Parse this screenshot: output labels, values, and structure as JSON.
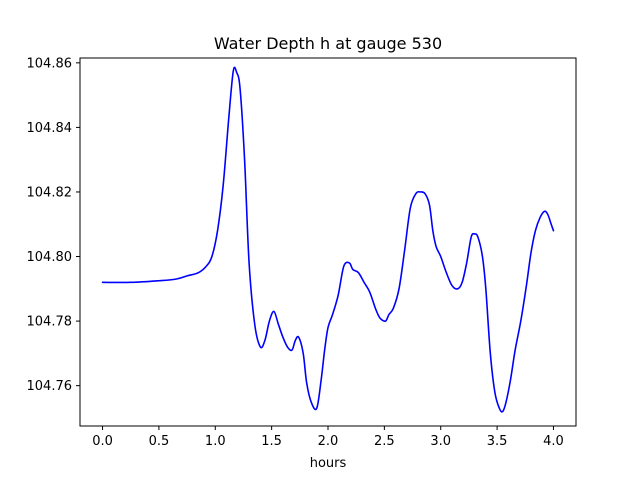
{
  "chart_data": {
    "type": "line",
    "title": "Water Depth h at gauge 530",
    "xlabel": "hours",
    "ylabel": "",
    "xlim": [
      -0.2,
      4.2
    ],
    "ylim": [
      104.7475,
      104.8615
    ],
    "x_ticks": [
      0.0,
      0.5,
      1.0,
      1.5,
      2.0,
      2.5,
      3.0,
      3.5,
      4.0
    ],
    "x_tick_labels": [
      "0.0",
      "0.5",
      "1.0",
      "1.5",
      "2.0",
      "2.5",
      "3.0",
      "3.5",
      "4.0"
    ],
    "y_ticks": [
      104.76,
      104.78,
      104.8,
      104.82,
      104.84,
      104.86
    ],
    "y_tick_labels": [
      "104.76",
      "104.78",
      "104.80",
      "104.82",
      "104.84",
      "104.86"
    ],
    "grid": false,
    "legend": "none",
    "line_color": "#0000ff",
    "series": [
      {
        "x": [
          0.0,
          0.25,
          0.5,
          0.65,
          0.75,
          0.85,
          0.92,
          0.97,
          1.02,
          1.07,
          1.12,
          1.16,
          1.19,
          1.22,
          1.26,
          1.3,
          1.35,
          1.4,
          1.44,
          1.48,
          1.52,
          1.56,
          1.6,
          1.64,
          1.68,
          1.71,
          1.74,
          1.78,
          1.81,
          1.85,
          1.9,
          1.94,
          1.97,
          2.0,
          2.04,
          2.09,
          2.14,
          2.19,
          2.22,
          2.27,
          2.32,
          2.37,
          2.42,
          2.46,
          2.51,
          2.54,
          2.58,
          2.63,
          2.68,
          2.73,
          2.78,
          2.82,
          2.86,
          2.9,
          2.93,
          2.96,
          3.0,
          3.05,
          3.1,
          3.15,
          3.19,
          3.23,
          3.27,
          3.3,
          3.33,
          3.37,
          3.4,
          3.44,
          3.48,
          3.52,
          3.55,
          3.58,
          3.62,
          3.66,
          3.71,
          3.76,
          3.8,
          3.84,
          3.88,
          3.92,
          3.95,
          3.98,
          4.0
        ],
        "y": [
          104.792,
          104.792,
          104.7925,
          104.793,
          104.794,
          104.795,
          104.797,
          104.8,
          104.808,
          104.822,
          104.843,
          104.8575,
          104.857,
          104.852,
          104.83,
          104.798,
          104.779,
          104.772,
          104.774,
          104.78,
          104.783,
          104.779,
          104.775,
          104.772,
          104.771,
          104.774,
          104.775,
          104.77,
          104.761,
          104.755,
          104.753,
          104.762,
          104.771,
          104.778,
          104.782,
          104.788,
          104.797,
          104.798,
          104.796,
          104.795,
          104.792,
          104.789,
          104.784,
          104.781,
          104.78,
          104.782,
          104.784,
          104.79,
          104.802,
          104.815,
          104.8195,
          104.82,
          104.8195,
          104.816,
          104.808,
          104.803,
          104.8,
          104.795,
          104.791,
          104.79,
          104.792,
          104.798,
          104.806,
          104.807,
          104.806,
          104.8,
          104.79,
          104.77,
          104.758,
          104.753,
          104.752,
          104.755,
          104.762,
          104.771,
          104.78,
          104.791,
          104.801,
          104.808,
          104.812,
          104.814,
          104.813,
          104.81,
          104.808
        ]
      }
    ]
  }
}
